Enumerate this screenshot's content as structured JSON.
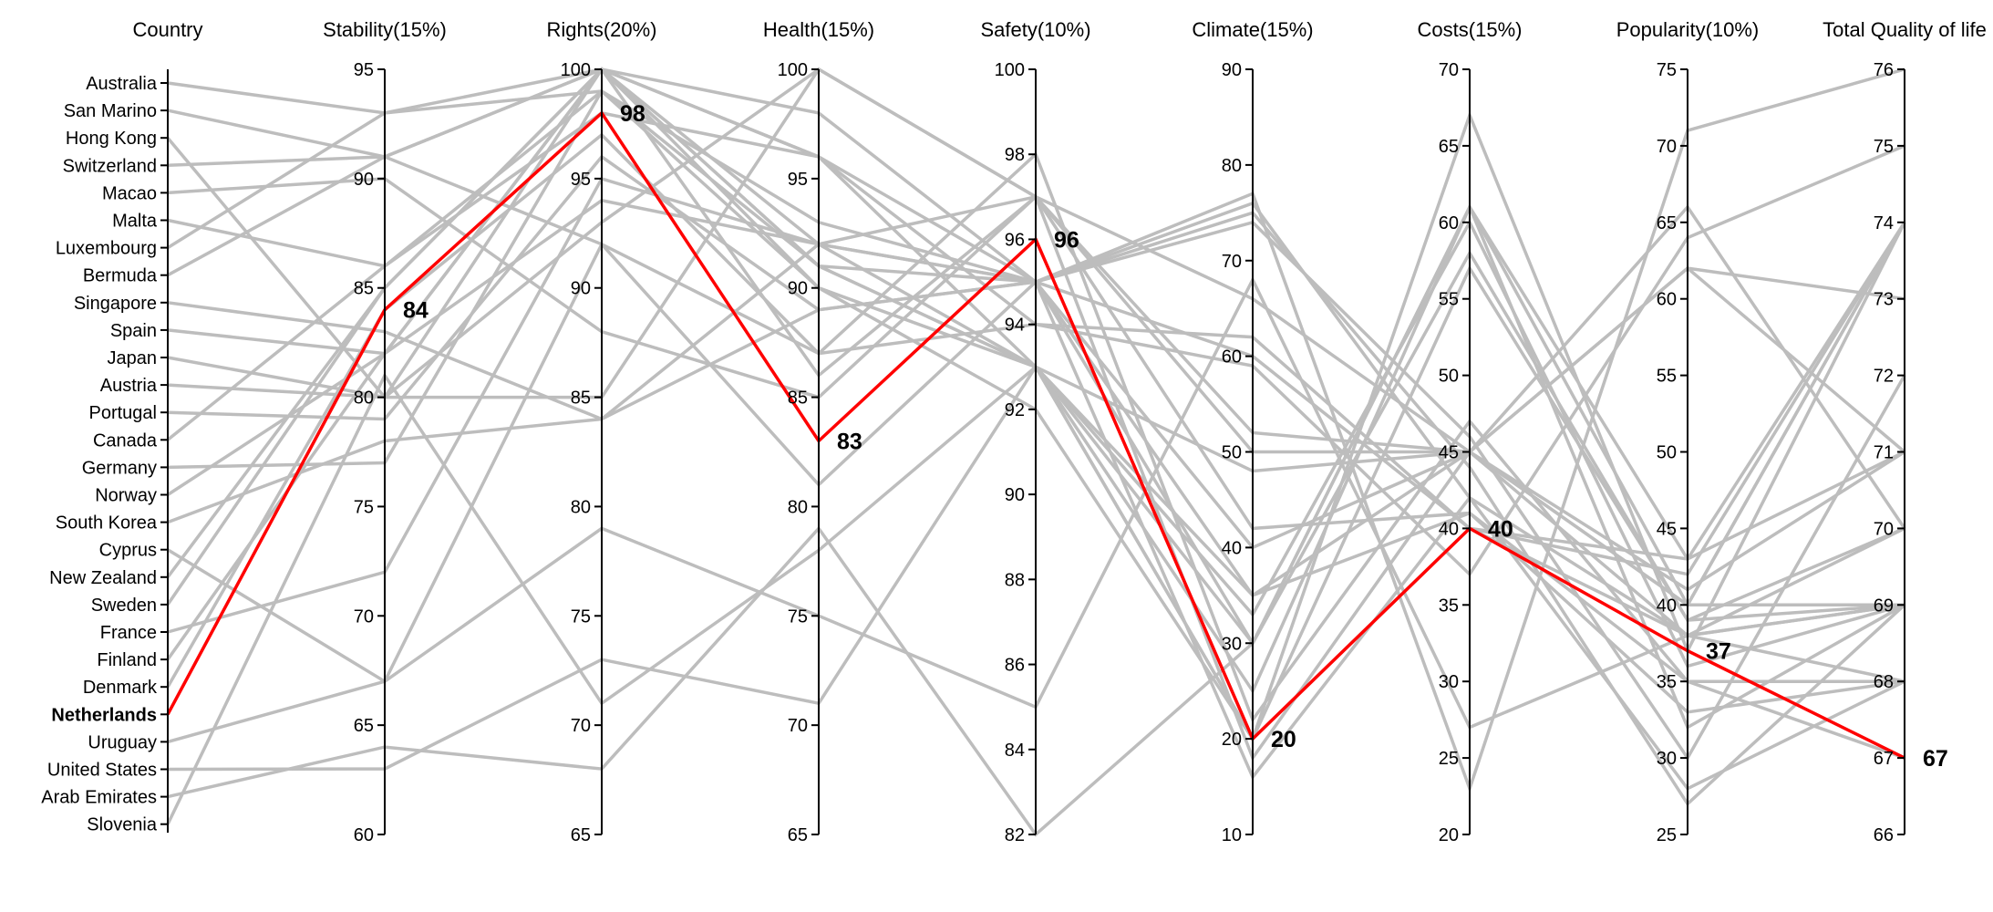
{
  "chart_data": {
    "type": "parallel-coordinates",
    "title": "",
    "highlight_country": "Netherlands",
    "colors": {
      "background_lines": "#bdbdbd",
      "highlight": "#ff0000",
      "axis": "#000000"
    },
    "axes": [
      {
        "key": "country",
        "title": "Country",
        "type": "categorical"
      },
      {
        "key": "stability",
        "title": "Stability(15%)",
        "range": [
          60,
          95
        ],
        "ticks": [
          60,
          65,
          70,
          75,
          80,
          85,
          90,
          95
        ]
      },
      {
        "key": "rights",
        "title": "Rights(20%)",
        "range": [
          65,
          100
        ],
        "ticks": [
          65,
          70,
          75,
          80,
          85,
          90,
          95,
          100
        ]
      },
      {
        "key": "health",
        "title": "Health(15%)",
        "range": [
          65,
          100
        ],
        "ticks": [
          65,
          70,
          75,
          80,
          85,
          90,
          95,
          100
        ]
      },
      {
        "key": "safety",
        "title": "Safety(10%)",
        "range": [
          82,
          100
        ],
        "ticks": [
          82,
          84,
          86,
          88,
          90,
          92,
          94,
          96,
          98,
          100
        ]
      },
      {
        "key": "climate",
        "title": "Climate(15%)",
        "range": [
          10,
          90
        ],
        "ticks": [
          10,
          20,
          30,
          40,
          50,
          60,
          70,
          80,
          90
        ]
      },
      {
        "key": "costs",
        "title": "Costs(15%)",
        "range": [
          20,
          70
        ],
        "ticks": [
          20,
          25,
          30,
          35,
          40,
          45,
          50,
          55,
          60,
          65,
          70
        ]
      },
      {
        "key": "popularity",
        "title": "Popularity(10%)",
        "range": [
          25,
          75
        ],
        "ticks": [
          25,
          30,
          35,
          40,
          45,
          50,
          55,
          60,
          65,
          70,
          75
        ]
      },
      {
        "key": "total",
        "title": "Total Quality of life",
        "range": [
          66,
          76
        ],
        "ticks": [
          66,
          67,
          68,
          69,
          70,
          71,
          72,
          73,
          74,
          75,
          76
        ]
      }
    ],
    "countries": [
      {
        "name": "Australia",
        "stability": 93,
        "rights": 100,
        "health": 98,
        "safety": 95,
        "climate": 77,
        "costs": 23,
        "popularity": 71,
        "total": 76
      },
      {
        "name": "San Marino",
        "stability": 91,
        "rights": 100,
        "health": 92,
        "safety": 93,
        "climate": 20,
        "costs": 67,
        "popularity": 37,
        "total": 74
      },
      {
        "name": "Hong Kong",
        "stability": 80,
        "rights": 85,
        "health": 100,
        "safety": 97,
        "climate": 52,
        "costs": 45,
        "popularity": 40,
        "total": 74
      },
      {
        "name": "Switzerland",
        "stability": 91,
        "rights": 100,
        "health": 96,
        "safety": 93,
        "climate": 30,
        "costs": 61,
        "popularity": 43,
        "total": 74
      },
      {
        "name": "Macao",
        "stability": 90,
        "rights": 88,
        "health": 85,
        "safety": 97,
        "climate": 50,
        "costs": 45,
        "popularity": 41,
        "total": 71
      },
      {
        "name": "Malta",
        "stability": 86,
        "rights": 98,
        "health": 96,
        "safety": 95,
        "climate": 60,
        "costs": 40,
        "popularity": 42,
        "total": 74
      },
      {
        "name": "Luxembourg",
        "stability": 93,
        "rights": 99,
        "health": 91,
        "safety": 93,
        "climate": 25,
        "costs": 61,
        "popularity": 40,
        "total": 74
      },
      {
        "name": "Bermuda",
        "stability": 91,
        "rights": 92,
        "health": 87,
        "safety": 94,
        "climate": 62,
        "costs": 40,
        "popularity": 43,
        "total": 71
      },
      {
        "name": "Singapore",
        "stability": 83,
        "rights": 84,
        "health": 89,
        "safety": 95,
        "climate": 40,
        "costs": 45,
        "popularity": 62,
        "total": 73
      },
      {
        "name": "Spain",
        "stability": 82,
        "rights": 94,
        "health": 92,
        "safety": 95,
        "climate": 74,
        "costs": 46,
        "popularity": 30,
        "total": 72
      },
      {
        "name": "Japan",
        "stability": 80,
        "rights": 93,
        "health": 100,
        "safety": 97,
        "climate": 66,
        "costs": 45,
        "popularity": 40,
        "total": 69
      },
      {
        "name": "Austria",
        "stability": 80,
        "rights": 100,
        "health": 91,
        "safety": 93,
        "climate": 33,
        "costs": 60,
        "popularity": 36,
        "total": 69
      },
      {
        "name": "Portugal",
        "stability": 79,
        "rights": 96,
        "health": 89,
        "safety": 95,
        "climate": 76,
        "costs": 42,
        "popularity": 28,
        "total": 68
      },
      {
        "name": "Canada",
        "stability": 86,
        "rights": 99,
        "health": 90,
        "safety": 93,
        "climate": 20,
        "costs": 57,
        "popularity": 39,
        "total": 70
      },
      {
        "name": "Germany",
        "stability": 77,
        "rights": 99,
        "health": 93,
        "safety": 95,
        "climate": 30,
        "costs": 58,
        "popularity": 39,
        "total": 69
      },
      {
        "name": "Norway",
        "stability": 82,
        "rights": 100,
        "health": 86,
        "safety": 97,
        "climate": 18,
        "costs": 45,
        "popularity": 38,
        "total": 69
      },
      {
        "name": "South Korea",
        "stability": 78,
        "rights": 84,
        "health": 92,
        "safety": 97,
        "climate": 42,
        "costs": 41,
        "popularity": 33,
        "total": 68
      },
      {
        "name": "Cyprus",
        "stability": 67,
        "rights": 92,
        "health": 81,
        "safety": 95,
        "climate": 75,
        "costs": 44,
        "popularity": 27,
        "total": 69
      },
      {
        "name": "New Zealand",
        "stability": 85,
        "rights": 100,
        "health": 96,
        "safety": 94,
        "climate": 59,
        "costs": 37,
        "popularity": 64,
        "total": 75
      },
      {
        "name": "Sweden",
        "stability": 85,
        "rights": 100,
        "health": 91,
        "safety": 95,
        "climate": 16,
        "costs": 42,
        "popularity": 38,
        "total": 70
      },
      {
        "name": "France",
        "stability": 72,
        "rights": 95,
        "health": 92,
        "safety": 95,
        "climate": 35,
        "costs": 45,
        "popularity": 62,
        "total": 71
      },
      {
        "name": "Finland",
        "stability": 82,
        "rights": 100,
        "health": 90,
        "safety": 92,
        "climate": 20,
        "costs": 40,
        "popularity": 38,
        "total": 69
      },
      {
        "name": "Denmark",
        "stability": 84,
        "rights": 97,
        "health": 87,
        "safety": 98,
        "climate": 22,
        "costs": 47,
        "popularity": 35,
        "total": 68
      },
      {
        "name": "Netherlands",
        "stability": 84,
        "rights": 98,
        "health": 83,
        "safety": 96,
        "climate": 20,
        "costs": 40,
        "popularity": 37,
        "total": 67
      },
      {
        "name": "Uruguay",
        "stability": 67,
        "rights": 79,
        "health": 75,
        "safety": 85,
        "climate": 68,
        "costs": 27,
        "popularity": 38,
        "total": 68
      },
      {
        "name": "United States",
        "stability": 63,
        "rights": 73,
        "health": 71,
        "safety": 93,
        "climate": 48,
        "costs": 45,
        "popularity": 66,
        "total": 70
      },
      {
        "name": "Arab Emirates",
        "stability": 64,
        "rights": 68,
        "health": 79,
        "safety": 82,
        "climate": 30,
        "costs": 61,
        "popularity": 32,
        "total": 69
      },
      {
        "name": "Slovenia",
        "stability": 81,
        "rights": 71,
        "health": 78,
        "safety": 93,
        "climate": 35,
        "costs": 41,
        "popularity": 35,
        "total": 67
      }
    ]
  }
}
